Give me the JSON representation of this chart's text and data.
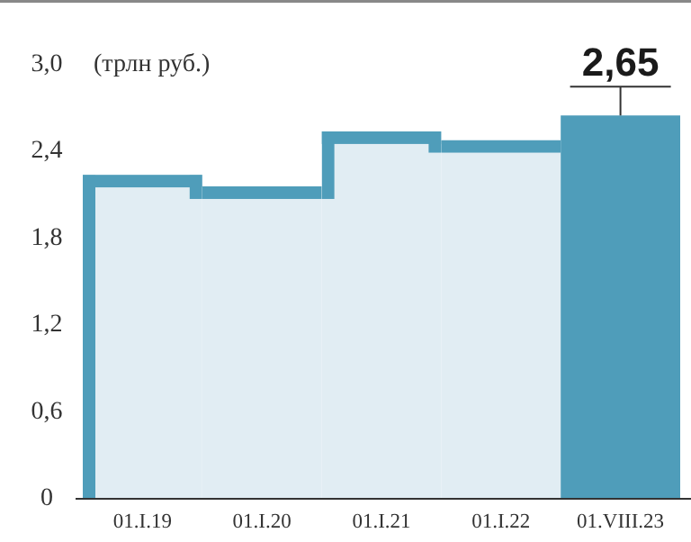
{
  "chart_data": {
    "type": "bar",
    "ylabel": "(трлн руб.)",
    "categories": [
      "01.I.19",
      "01.I.20",
      "01.I.21",
      "01.I.22",
      "01.VIII.23"
    ],
    "values": [
      2.24,
      2.16,
      2.54,
      2.48,
      2.65
    ],
    "colors": [
      "#e1edf3",
      "#e1edf3",
      "#e1edf3",
      "#e1edf3",
      "#4f9dba"
    ],
    "value_labels": [
      null,
      null,
      null,
      null,
      "2,65"
    ],
    "ylim": [
      0,
      3
    ],
    "yticks": [
      0,
      {
        "value": 0.6,
        "label": "0,6"
      },
      {
        "value": 1.2,
        "label": "1,2"
      },
      {
        "value": 1.8,
        "label": "1,8"
      },
      {
        "value": 2.4,
        "label": "2,4"
      },
      {
        "value": 3,
        "label": "3,0"
      }
    ],
    "grid": false
  }
}
